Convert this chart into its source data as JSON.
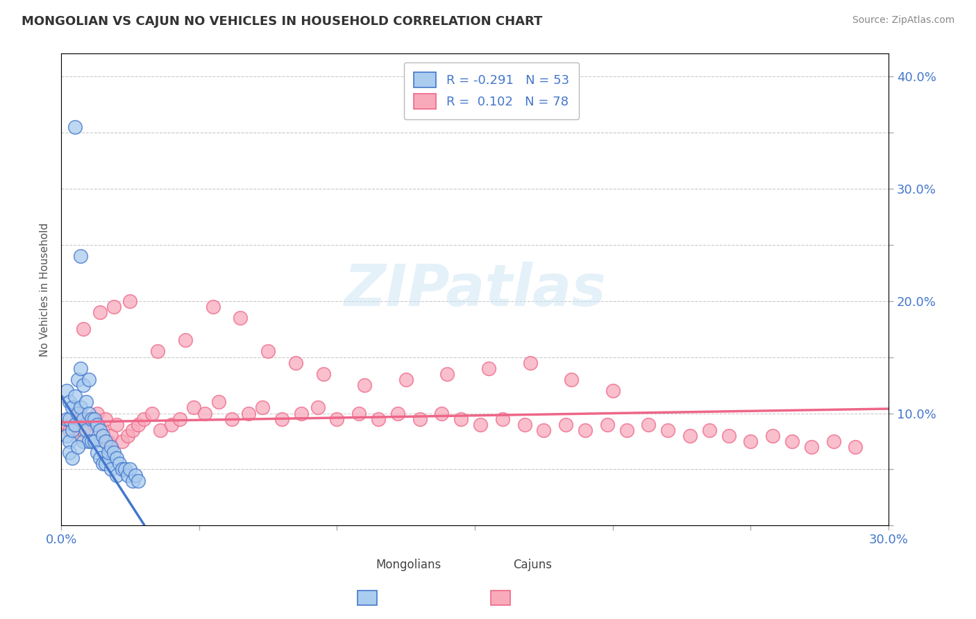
{
  "title": "MONGOLIAN VS CAJUN NO VEHICLES IN HOUSEHOLD CORRELATION CHART",
  "source_text": "Source: ZipAtlas.com",
  "ylabel": "No Vehicles in Household",
  "xlim": [
    0.0,
    0.3
  ],
  "ylim": [
    0.0,
    0.42
  ],
  "xticks": [
    0.0,
    0.05,
    0.1,
    0.15,
    0.2,
    0.25,
    0.3
  ],
  "yticks": [
    0.0,
    0.05,
    0.1,
    0.15,
    0.2,
    0.25,
    0.3,
    0.35,
    0.4
  ],
  "mongolian_R": -0.291,
  "mongolian_N": 53,
  "cajun_R": 0.102,
  "cajun_N": 78,
  "mongolian_color": "#aaccee",
  "mongolian_line_color": "#4477cc",
  "cajun_color": "#f8aabb",
  "cajun_line_color": "#ee6688",
  "background_color": "#ffffff",
  "grid_color": "#bbbbbb",
  "text_color": "#4477cc",
  "watermark": "ZIPatlas",
  "mongolian_trend_x": [
    0.0,
    0.03
  ],
  "mongolian_trend_y": [
    0.115,
    0.001
  ],
  "cajun_trend_x": [
    0.0,
    0.3
  ],
  "cajun_trend_y": [
    0.092,
    0.104
  ],
  "mongolian_scatter_x": [
    0.002,
    0.002,
    0.002,
    0.003,
    0.003,
    0.003,
    0.004,
    0.004,
    0.005,
    0.005,
    0.005,
    0.006,
    0.006,
    0.007,
    0.007,
    0.007,
    0.008,
    0.008,
    0.008,
    0.009,
    0.009,
    0.01,
    0.01,
    0.01,
    0.011,
    0.011,
    0.012,
    0.012,
    0.013,
    0.013,
    0.014,
    0.014,
    0.015,
    0.015,
    0.016,
    0.016,
    0.017,
    0.018,
    0.018,
    0.019,
    0.02,
    0.02,
    0.021,
    0.022,
    0.023,
    0.024,
    0.025,
    0.026,
    0.027,
    0.028,
    0.003,
    0.004,
    0.006
  ],
  "mongolian_scatter_y": [
    0.12,
    0.095,
    0.08,
    0.11,
    0.095,
    0.075,
    0.105,
    0.085,
    0.355,
    0.115,
    0.09,
    0.13,
    0.1,
    0.24,
    0.14,
    0.105,
    0.125,
    0.095,
    0.075,
    0.11,
    0.085,
    0.13,
    0.1,
    0.075,
    0.095,
    0.075,
    0.095,
    0.075,
    0.09,
    0.065,
    0.085,
    0.06,
    0.08,
    0.055,
    0.075,
    0.055,
    0.065,
    0.07,
    0.05,
    0.065,
    0.06,
    0.045,
    0.055,
    0.05,
    0.05,
    0.045,
    0.05,
    0.04,
    0.045,
    0.04,
    0.065,
    0.06,
    0.07
  ],
  "cajun_scatter_x": [
    0.002,
    0.003,
    0.004,
    0.005,
    0.006,
    0.007,
    0.008,
    0.01,
    0.011,
    0.012,
    0.013,
    0.015,
    0.016,
    0.017,
    0.018,
    0.02,
    0.022,
    0.024,
    0.026,
    0.028,
    0.03,
    0.033,
    0.036,
    0.04,
    0.043,
    0.048,
    0.052,
    0.057,
    0.062,
    0.068,
    0.073,
    0.08,
    0.087,
    0.093,
    0.1,
    0.108,
    0.115,
    0.122,
    0.13,
    0.138,
    0.145,
    0.152,
    0.16,
    0.168,
    0.175,
    0.183,
    0.19,
    0.198,
    0.205,
    0.213,
    0.22,
    0.228,
    0.235,
    0.242,
    0.25,
    0.258,
    0.265,
    0.272,
    0.28,
    0.288,
    0.008,
    0.014,
    0.019,
    0.025,
    0.035,
    0.045,
    0.055,
    0.065,
    0.075,
    0.085,
    0.095,
    0.11,
    0.125,
    0.14,
    0.155,
    0.17,
    0.185,
    0.2
  ],
  "cajun_scatter_y": [
    0.09,
    0.085,
    0.095,
    0.09,
    0.1,
    0.08,
    0.085,
    0.095,
    0.075,
    0.09,
    0.1,
    0.085,
    0.095,
    0.075,
    0.08,
    0.09,
    0.075,
    0.08,
    0.085,
    0.09,
    0.095,
    0.1,
    0.085,
    0.09,
    0.095,
    0.105,
    0.1,
    0.11,
    0.095,
    0.1,
    0.105,
    0.095,
    0.1,
    0.105,
    0.095,
    0.1,
    0.095,
    0.1,
    0.095,
    0.1,
    0.095,
    0.09,
    0.095,
    0.09,
    0.085,
    0.09,
    0.085,
    0.09,
    0.085,
    0.09,
    0.085,
    0.08,
    0.085,
    0.08,
    0.075,
    0.08,
    0.075,
    0.07,
    0.075,
    0.07,
    0.175,
    0.19,
    0.195,
    0.2,
    0.155,
    0.165,
    0.195,
    0.185,
    0.155,
    0.145,
    0.135,
    0.125,
    0.13,
    0.135,
    0.14,
    0.145,
    0.13,
    0.12
  ]
}
